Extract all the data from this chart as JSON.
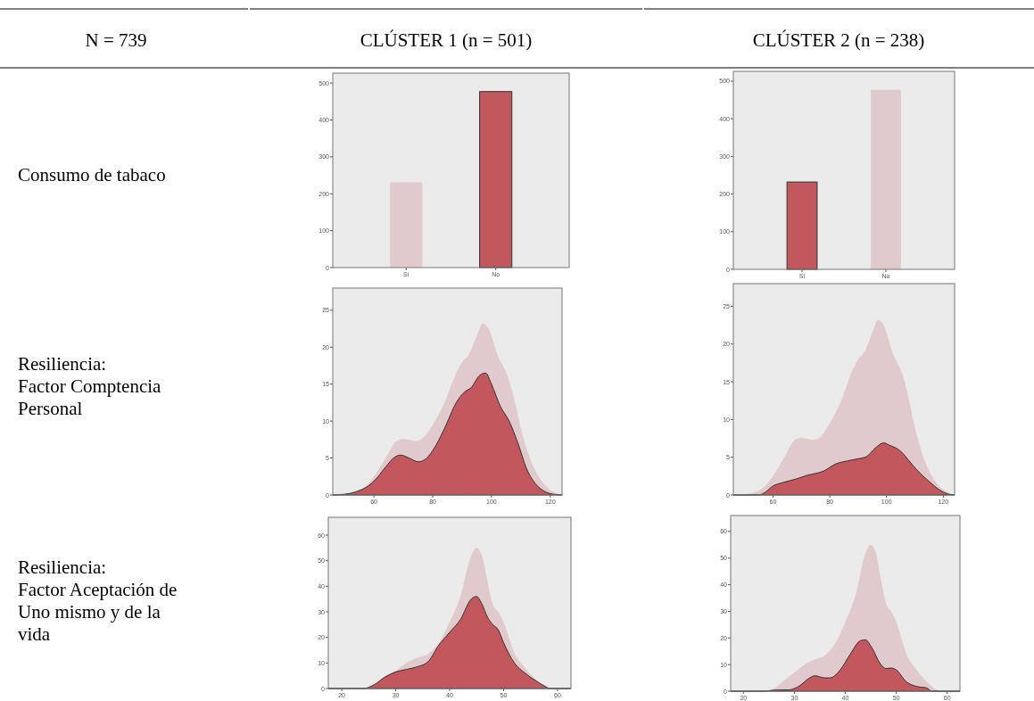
{
  "chart_data": [
    {
      "type": "other",
      "annotations": [
        "N = 739",
        "CLÚSTER 1 (n = 501)",
        "CLÚSTER 2 (n = 238)",
        "Consumo de tabaco",
        "Resiliencia:\nFactor Comptencia\nPersonal",
        "Resiliencia:\nFactor Aceptación de\nUno mismo y de la\nvida"
      ]
    },
    {
      "type": "bar",
      "categories": [
        "Sí",
        "No"
      ],
      "values": [
        231,
        477
      ],
      "colors": [
        "#e1cacc",
        "#c2575d"
      ],
      "ylim": [
        0,
        527
      ],
      "yticks": [
        0,
        100,
        200,
        300,
        400,
        500
      ]
    },
    {
      "type": "bar",
      "categories": [
        "Sí",
        "No"
      ],
      "values": [
        232,
        477
      ],
      "colors": [
        "#c2575d",
        "#e1cacc"
      ],
      "ylim": [
        0,
        526
      ],
      "yticks": [
        0,
        100,
        200,
        300,
        400,
        500
      ]
    },
    {
      "type": "area",
      "xlim": [
        46,
        124
      ],
      "ylim": [
        0,
        28
      ],
      "xticks": [
        60,
        80,
        100,
        120
      ],
      "yticks": [
        0,
        5,
        10,
        15,
        20,
        25
      ],
      "series": [
        {
          "color": "#e1cacc",
          "x": [
            46,
            50,
            55,
            58,
            60,
            64,
            68,
            70,
            74,
            76,
            80,
            84,
            88,
            90,
            92,
            95,
            97,
            99,
            102,
            106,
            108,
            110,
            113,
            116,
            119,
            122,
            124
          ],
          "values": [
            0,
            0.1,
            0.6,
            1.5,
            2.5,
            5,
            7.4,
            7.6,
            7.3,
            7.5,
            9.5,
            12.5,
            16.5,
            18,
            18.8,
            21.5,
            23.2,
            22.5,
            19,
            15.5,
            12.5,
            9,
            5,
            2.5,
            1,
            0.3,
            0
          ]
        },
        {
          "color": "#c2575d",
          "x": [
            46,
            50,
            55,
            58,
            61,
            64,
            67,
            69,
            72,
            75,
            77,
            80,
            84,
            88,
            91,
            93,
            96,
            98,
            100,
            103,
            106,
            109,
            112,
            115,
            118,
            121,
            124
          ],
          "values": [
            0,
            0.1,
            0.6,
            1.2,
            2.3,
            3.8,
            5.1,
            5.4,
            5,
            4.5,
            4.7,
            6,
            9,
            12.5,
            14,
            14.5,
            16.2,
            16.5,
            15,
            12,
            10,
            7,
            3.5,
            1.5,
            0.5,
            0.1,
            0
          ]
        }
      ]
    },
    {
      "type": "area",
      "xlim": [
        46,
        124
      ],
      "ylim": [
        0,
        28
      ],
      "xticks": [
        60,
        80,
        100,
        120
      ],
      "yticks": [
        0,
        5,
        10,
        15,
        20,
        25
      ],
      "series": [
        {
          "color": "#e1cacc",
          "x": [
            46,
            50,
            55,
            58,
            60,
            64,
            68,
            70,
            74,
            76,
            80,
            84,
            88,
            90,
            92,
            95,
            97,
            99,
            102,
            106,
            108,
            110,
            113,
            116,
            119,
            122,
            124
          ],
          "values": [
            0,
            0.1,
            0.6,
            1.5,
            2.5,
            5,
            7.4,
            7.6,
            7.3,
            7.5,
            9.5,
            12.5,
            16.5,
            18,
            18.8,
            21.5,
            23.2,
            22.5,
            19,
            15.5,
            12.5,
            9,
            5,
            2.5,
            1,
            0.3,
            0
          ]
        },
        {
          "color": "#c2575d",
          "x": [
            46,
            55,
            57,
            60,
            63,
            68,
            72,
            78,
            82,
            86,
            90,
            93,
            96,
            99,
            101,
            105,
            108,
            111,
            115,
            119,
            122,
            124
          ],
          "values": [
            0,
            0,
            0.3,
            1.2,
            1.6,
            2.1,
            2.6,
            3.2,
            4.1,
            4.5,
            4.8,
            5.1,
            6.2,
            6.9,
            6.6,
            5.8,
            4.5,
            3.2,
            1.8,
            0.6,
            0.1,
            0
          ]
        }
      ]
    },
    {
      "type": "area",
      "xlim": [
        17.5,
        62.5
      ],
      "ylim": [
        0,
        67
      ],
      "xticks": [
        20,
        30,
        40,
        50,
        60
      ],
      "yticks": [
        0,
        10,
        20,
        30,
        40,
        50,
        60
      ],
      "series": [
        {
          "color": "#e1cacc",
          "x": [
            17.5,
            24,
            26,
            28,
            30,
            32,
            34,
            36,
            38,
            40,
            42,
            44,
            45,
            46,
            47,
            48,
            49,
            50,
            52,
            54,
            56,
            58,
            59,
            62.5
          ],
          "values": [
            0,
            0,
            1,
            4,
            7,
            10,
            12,
            13.5,
            18,
            26,
            36,
            52,
            55,
            52,
            42,
            33,
            30,
            26,
            14,
            8,
            3.5,
            0.5,
            0,
            0
          ]
        },
        {
          "color": "#c2575d",
          "x": [
            17.5,
            24,
            26,
            28,
            30,
            32,
            34,
            36,
            38,
            40,
            42,
            44,
            45,
            46,
            47,
            48,
            49,
            50,
            52,
            54,
            56,
            58,
            58.5,
            62.5
          ],
          "values": [
            0,
            0,
            1.5,
            4.5,
            6.5,
            7.5,
            8.5,
            10.5,
            17,
            22,
            27,
            35,
            36,
            33,
            28,
            25,
            23,
            18,
            10,
            6,
            3,
            0.5,
            0,
            0
          ]
        }
      ]
    },
    {
      "type": "area",
      "xlim": [
        17.5,
        62.5
      ],
      "ylim": [
        0,
        66
      ],
      "xticks": [
        20,
        30,
        40,
        50,
        60
      ],
      "yticks": [
        0,
        10,
        20,
        30,
        40,
        50,
        60
      ],
      "series": [
        {
          "color": "#e1cacc",
          "x": [
            17.5,
            24,
            26,
            28,
            30,
            32,
            34,
            36,
            38,
            40,
            42,
            44,
            45,
            46,
            47,
            48,
            49,
            50,
            52,
            54,
            56,
            58,
            59,
            62.5
          ],
          "values": [
            0,
            0,
            1,
            4,
            7,
            10,
            12,
            13.5,
            18,
            26,
            36,
            52,
            55,
            52,
            42,
            33,
            30,
            26,
            14,
            8,
            3.5,
            0.5,
            0,
            0
          ]
        },
        {
          "color": "#c2575d",
          "x": [
            17.5,
            24,
            26,
            29,
            31,
            33,
            34,
            36,
            37,
            39,
            41,
            43,
            44,
            45,
            47,
            48,
            49,
            50,
            52,
            54,
            56,
            57,
            62.5
          ],
          "values": [
            0,
            0,
            0.4,
            0.5,
            2,
            5,
            5.8,
            5,
            5,
            8,
            14,
            19,
            19.3,
            17,
            10,
            8.5,
            8.7,
            8,
            3.5,
            1.8,
            1.2,
            0,
            0
          ]
        }
      ]
    }
  ]
}
